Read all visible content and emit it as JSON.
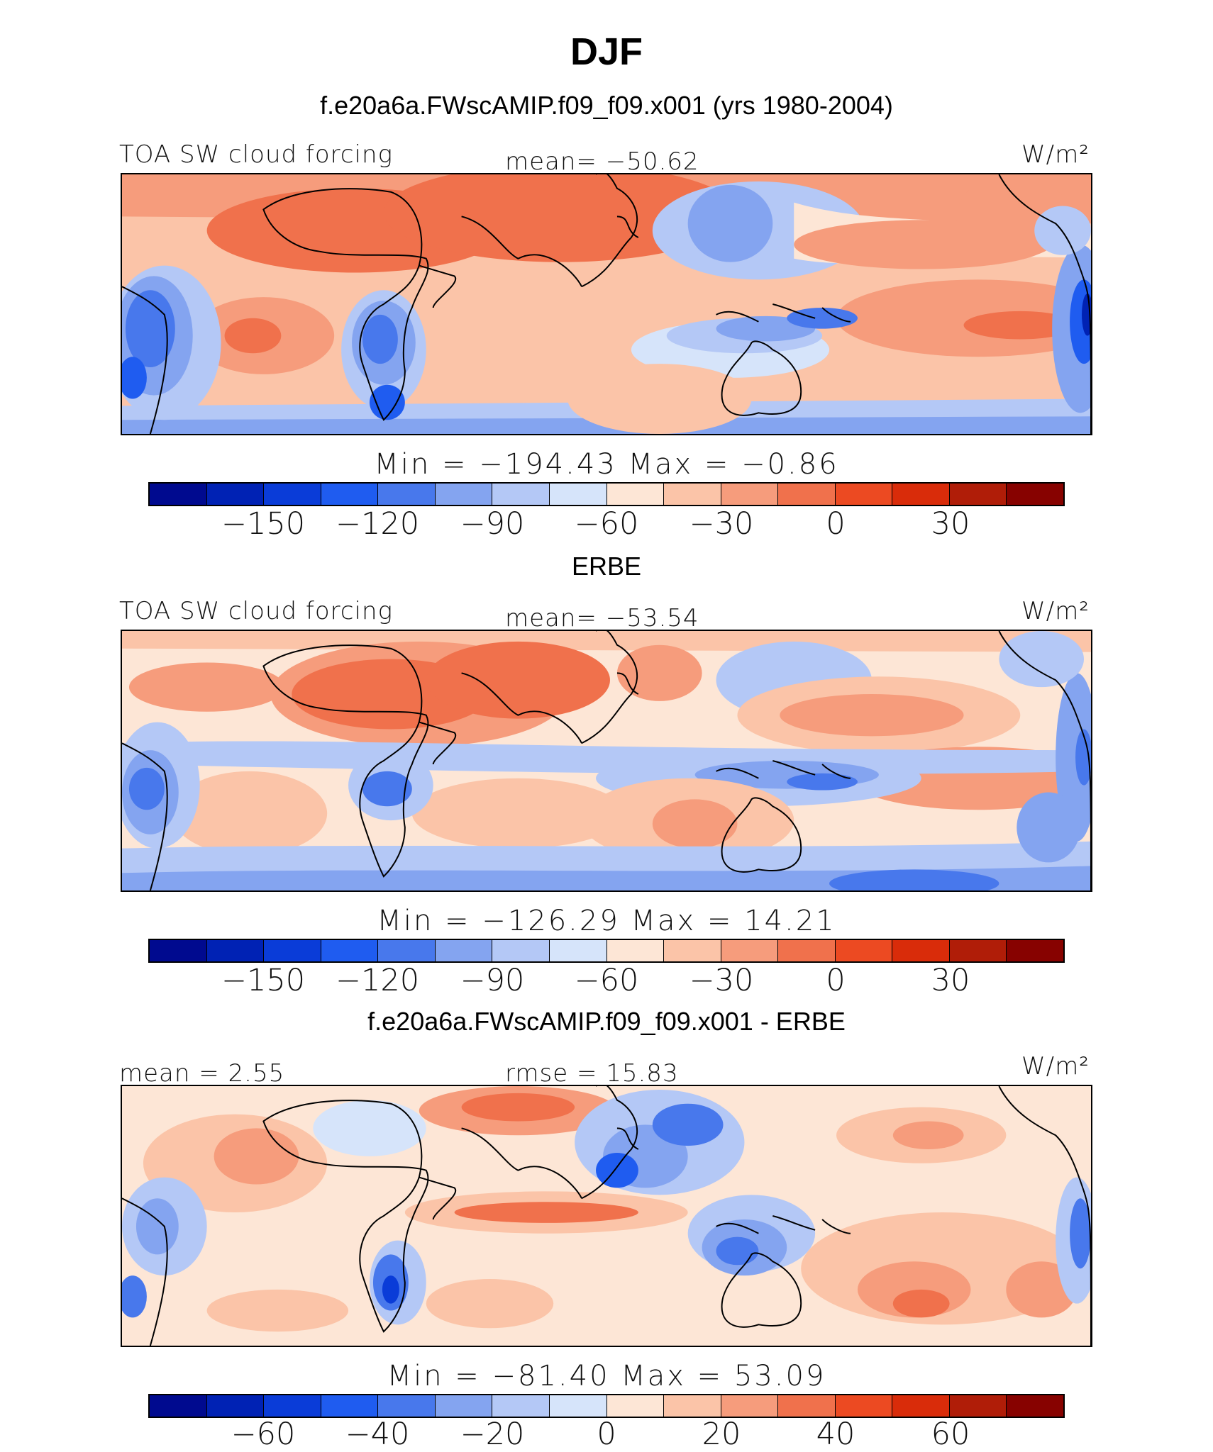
{
  "figure": {
    "title": "DJF",
    "subtitle": "f.e20a6a.FWscAMIP.f09_f09.x001 (yrs 1980-2004)"
  },
  "panels": [
    {
      "name": "model",
      "left_label": "TOA SW cloud forcing",
      "center_label": "mean= −50.62",
      "units": "W/m²",
      "stats": "Min  =  −194.43  Max  =   −0.86",
      "colorbar_ticks": [
        "−150",
        "−120",
        "−90",
        "−60",
        "−30",
        "0",
        "30"
      ],
      "colorbar_tick_values": [
        -150,
        -120,
        -90,
        -60,
        -30,
        0,
        30
      ],
      "levels": [
        -165,
        -150,
        -135,
        -120,
        -105,
        -90,
        -75,
        -60,
        -45,
        -30,
        -15,
        0,
        15,
        30,
        45
      ]
    },
    {
      "name": "obs",
      "heading": "ERBE",
      "left_label": "TOA SW cloud forcing",
      "center_label": "mean= −53.54",
      "units": "W/m²",
      "stats": "Min  =  −126.29  Max  =   14.21",
      "colorbar_ticks": [
        "−150",
        "−120",
        "−90",
        "−60",
        "−30",
        "0",
        "30"
      ],
      "colorbar_tick_values": [
        -150,
        -120,
        -90,
        -60,
        -30,
        0,
        30
      ],
      "levels": [
        -165,
        -150,
        -135,
        -120,
        -105,
        -90,
        -75,
        -60,
        -45,
        -30,
        -15,
        0,
        15,
        30,
        45
      ]
    },
    {
      "name": "difference",
      "heading": "f.e20a6a.FWscAMIP.f09_f09.x001 - ERBE",
      "left_label": "mean =    2.55",
      "center_label": "rmse  =   15.83",
      "units": "W/m²",
      "stats": "Min  =  −81.40  Max  =   53.09",
      "colorbar_ticks": [
        "−60",
        "−40",
        "−20",
        "0",
        "20",
        "40",
        "60"
      ],
      "colorbar_tick_values": [
        -60,
        -40,
        -20,
        0,
        20,
        40,
        60
      ],
      "levels": [
        -70,
        -60,
        -50,
        -40,
        -30,
        -20,
        -10,
        0,
        10,
        20,
        30,
        40,
        50,
        60,
        70
      ]
    }
  ],
  "colors": {
    "bins": [
      "#000a8f",
      "#0022b4",
      "#0a3cd8",
      "#1f5cf0",
      "#4878ec",
      "#84a4f0",
      "#b4c8f6",
      "#d6e4fa",
      "#fde6d6",
      "#fbc4a8",
      "#f69c7c",
      "#f0714c",
      "#ec4a22",
      "#d92c0a",
      "#b01d08",
      "#870200"
    ],
    "coast": "#000000"
  }
}
